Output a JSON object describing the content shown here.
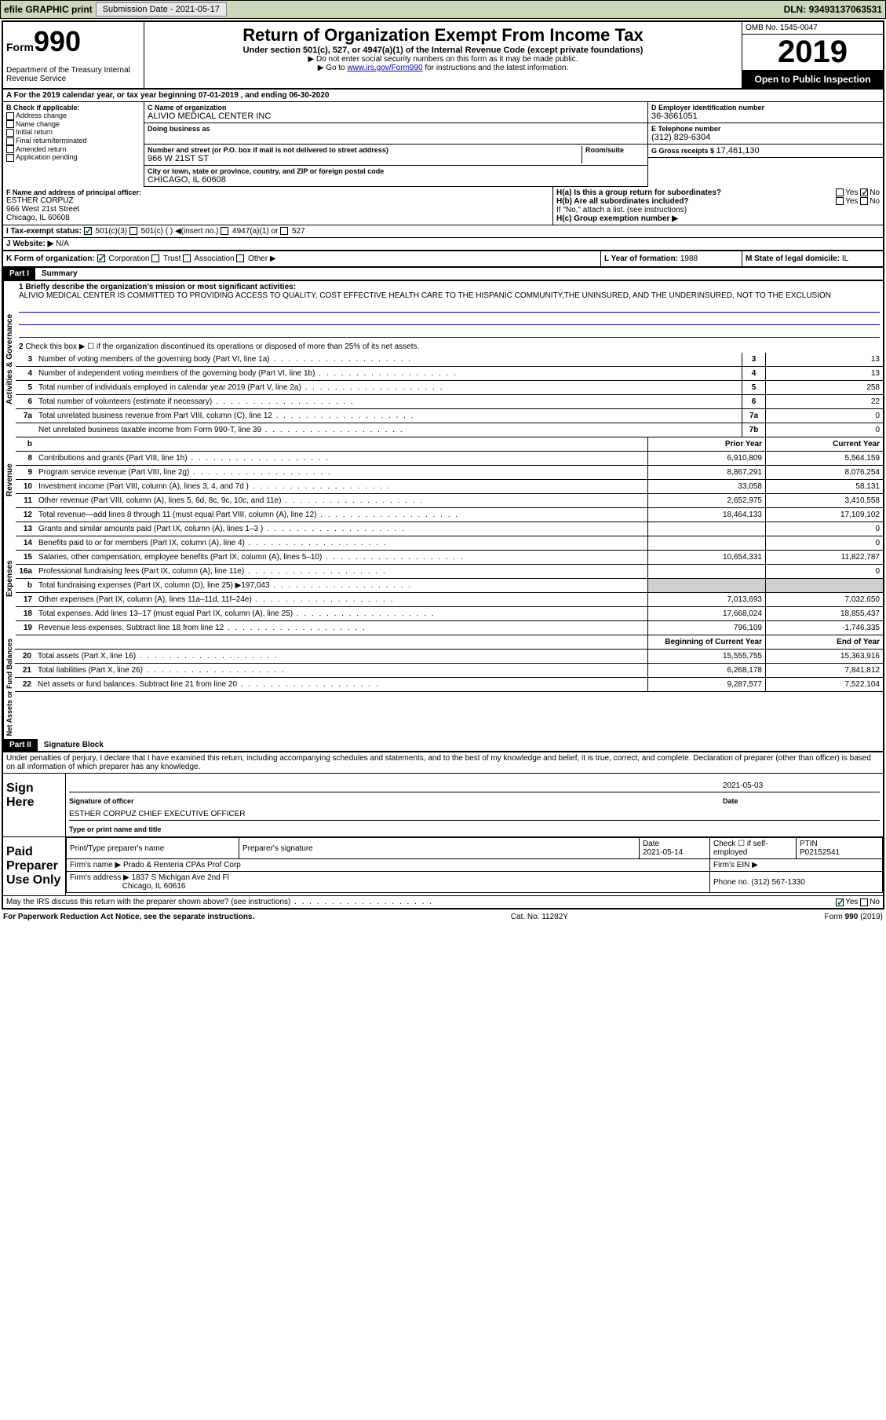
{
  "topbar": {
    "efile": "efile GRAPHIC print",
    "subdate_label": "Submission Date - ",
    "subdate": "2021-05-17",
    "dln_label": "DLN: ",
    "dln": "93493137063531"
  },
  "header": {
    "form_label": "Form",
    "form_num": "990",
    "dept": "Department of the Treasury\nInternal Revenue Service",
    "title": "Return of Organization Exempt From Income Tax",
    "subtitle": "Under section 501(c), 527, or 4947(a)(1) of the Internal Revenue Code (except private foundations)",
    "instruct1": "▶ Do not enter social security numbers on this form as it may be made public.",
    "instruct2_pre": "▶ Go to ",
    "instruct2_link": "www.irs.gov/Form990",
    "instruct2_post": " for instructions and the latest information.",
    "omb": "OMB No. 1545-0047",
    "year": "2019",
    "openpub": "Open to Public Inspection"
  },
  "line_a": "A For the 2019 calendar year, or tax year beginning 07-01-2019   , and ending 06-30-2020",
  "box_b": {
    "label": "B Check if applicable:",
    "opts": [
      "Address change",
      "Name change",
      "Initial return",
      "Final return/terminated",
      "Amended return",
      "Application pending"
    ]
  },
  "box_c": {
    "name_label": "C Name of organization",
    "name": "ALIVIO MEDICAL CENTER INC",
    "dba_label": "Doing business as",
    "addr_label": "Number and street (or P.O. box if mail is not delivered to street address)",
    "room_label": "Room/suite",
    "addr": "966 W 21ST ST",
    "city_label": "City or town, state or province, country, and ZIP or foreign postal code",
    "city": "CHICAGO, IL  60608"
  },
  "box_d": {
    "label": "D Employer identification number",
    "val": "36-3661051"
  },
  "box_e": {
    "label": "E Telephone number",
    "val": "(312) 829-6304"
  },
  "box_g": {
    "label": "G Gross receipts $ ",
    "val": "17,461,130"
  },
  "box_f": {
    "label": "F  Name and address of principal officer:",
    "name": "ESTHER CORPUZ",
    "addr1": "966 West 21st Street",
    "addr2": "Chicago, IL  60608"
  },
  "box_h": {
    "a_label": "H(a)  Is this a group return for subordinates?",
    "a_yes": "Yes",
    "a_no": "No",
    "b_label": "H(b)  Are all subordinates included?",
    "b_yes": "Yes",
    "b_no": "No",
    "b_note": "If \"No,\" attach a list. (see instructions)",
    "c_label": "H(c)  Group exemption number ▶"
  },
  "box_i": {
    "label": "I  Tax-exempt status:",
    "opt1": "501(c)(3)",
    "opt2": "501(c) (   ) ◀(insert no.)",
    "opt3": "4947(a)(1) or",
    "opt4": "527"
  },
  "box_j": {
    "label": "J  Website: ▶",
    "val": "N/A"
  },
  "box_k": {
    "label": "K Form of organization:",
    "opts": [
      "Corporation",
      "Trust",
      "Association",
      "Other ▶"
    ]
  },
  "box_l": {
    "label": "L Year of formation: ",
    "val": "1988"
  },
  "box_m": {
    "label": "M State of legal domicile: ",
    "val": "IL"
  },
  "part1": {
    "num": "Part I",
    "title": "Summary",
    "l1_label": "1  Briefly describe the organization's mission or most significant activities:",
    "l1_text": "ALIVIO MEDICAL CENTER IS COMMITTED TO PROVIDING ACCESS TO QUALITY, COST EFFECTIVE HEALTH CARE TO THE HISPANIC COMMUNITY,THE UNINSURED, AND THE UNDERINSURED, NOT TO THE EXCLUSION",
    "l2": "Check this box ▶ ☐  if the organization discontinued its operations or disposed of more than 25% of its net assets.",
    "governance_label": "Activities & Governance",
    "revenue_label": "Revenue",
    "expenses_label": "Expenses",
    "netassets_label": "Net Assets or Fund Balances",
    "lines_gov": [
      {
        "n": "3",
        "d": "Number of voting members of the governing body (Part VI, line 1a)",
        "b": "3",
        "v": "13"
      },
      {
        "n": "4",
        "d": "Number of independent voting members of the governing body (Part VI, line 1b)",
        "b": "4",
        "v": "13"
      },
      {
        "n": "5",
        "d": "Total number of individuals employed in calendar year 2019 (Part V, line 2a)",
        "b": "5",
        "v": "258"
      },
      {
        "n": "6",
        "d": "Total number of volunteers (estimate if necessary)",
        "b": "6",
        "v": "22"
      },
      {
        "n": "7a",
        "d": "Total unrelated business revenue from Part VIII, column (C), line 12",
        "b": "7a",
        "v": "0"
      },
      {
        "n": "",
        "d": "Net unrelated business taxable income from Form 990-T, line 39",
        "b": "7b",
        "v": "0"
      }
    ],
    "col_prior": "Prior Year",
    "col_current": "Current Year",
    "lines_rev": [
      {
        "n": "8",
        "d": "Contributions and grants (Part VIII, line 1h)",
        "p": "6,910,809",
        "c": "5,564,159"
      },
      {
        "n": "9",
        "d": "Program service revenue (Part VIII, line 2g)",
        "p": "8,867,291",
        "c": "8,076,254"
      },
      {
        "n": "10",
        "d": "Investment income (Part VIII, column (A), lines 3, 4, and 7d )",
        "p": "33,058",
        "c": "58,131"
      },
      {
        "n": "11",
        "d": "Other revenue (Part VIII, column (A), lines 5, 6d, 8c, 9c, 10c, and 11e)",
        "p": "2,652,975",
        "c": "3,410,558"
      },
      {
        "n": "12",
        "d": "Total revenue—add lines 8 through 11 (must equal Part VIII, column (A), line 12)",
        "p": "18,464,133",
        "c": "17,109,102"
      }
    ],
    "lines_exp": [
      {
        "n": "13",
        "d": "Grants and similar amounts paid (Part IX, column (A), lines 1–3 )",
        "p": "",
        "c": "0"
      },
      {
        "n": "14",
        "d": "Benefits paid to or for members (Part IX, column (A), line 4)",
        "p": "",
        "c": "0"
      },
      {
        "n": "15",
        "d": "Salaries, other compensation, employee benefits (Part IX, column (A), lines 5–10)",
        "p": "10,654,331",
        "c": "11,822,787"
      },
      {
        "n": "16a",
        "d": "Professional fundraising fees (Part IX, column (A), line 11e)",
        "p": "",
        "c": "0"
      },
      {
        "n": "b",
        "d": "Total fundraising expenses (Part IX, column (D), line 25) ▶197,043",
        "p": "shaded",
        "c": "shaded"
      },
      {
        "n": "17",
        "d": "Other expenses (Part IX, column (A), lines 11a–11d, 11f–24e)",
        "p": "7,013,693",
        "c": "7,032,650"
      },
      {
        "n": "18",
        "d": "Total expenses. Add lines 13–17 (must equal Part IX, column (A), line 25)",
        "p": "17,668,024",
        "c": "18,855,437"
      },
      {
        "n": "19",
        "d": "Revenue less expenses. Subtract line 18 from line 12",
        "p": "796,109",
        "c": "-1,746,335"
      }
    ],
    "col_begin": "Beginning of Current Year",
    "col_end": "End of Year",
    "lines_net": [
      {
        "n": "20",
        "d": "Total assets (Part X, line 16)",
        "p": "15,555,755",
        "c": "15,363,916"
      },
      {
        "n": "21",
        "d": "Total liabilities (Part X, line 26)",
        "p": "6,268,178",
        "c": "7,841,812"
      },
      {
        "n": "22",
        "d": "Net assets or fund balances. Subtract line 21 from line 20",
        "p": "9,287,577",
        "c": "7,522,104"
      }
    ]
  },
  "part2": {
    "num": "Part II",
    "title": "Signature Block",
    "penalty": "Under penalties of perjury, I declare that I have examined this return, including accompanying schedules and statements, and to the best of my knowledge and belief, it is true, correct, and complete. Declaration of preparer (other than officer) is based on all information of which preparer has any knowledge.",
    "sign_here": "Sign Here",
    "sig_officer_label": "Signature of officer",
    "sig_date_label": "Date",
    "sig_date": "2021-05-03",
    "sig_name": "ESTHER CORPUZ  CHIEF EXECUTIVE OFFICER",
    "sig_name_label": "Type or print name and title",
    "paid_label": "Paid Preparer Use Only",
    "prep_name_label": "Print/Type preparer's name",
    "prep_sig_label": "Preparer's signature",
    "prep_date_label": "Date",
    "prep_date": "2021-05-14",
    "prep_check_label": "Check ☐ if self-employed",
    "ptin_label": "PTIN",
    "ptin": "P02152541",
    "firm_name_label": "Firm's name     ▶",
    "firm_name": "Prado & Renteria CPAs Prof Corp",
    "firm_ein_label": "Firm's EIN ▶",
    "firm_addr_label": "Firm's address ▶",
    "firm_addr1": "1837 S Michigan Ave 2nd Fl",
    "firm_addr2": "Chicago, IL  60616",
    "phone_label": "Phone no. ",
    "phone": "(312) 567-1330",
    "discuss": "May the IRS discuss this return with the preparer shown above? (see instructions)",
    "d_yes": "Yes",
    "d_no": "No"
  },
  "footer": {
    "left": "For Paperwork Reduction Act Notice, see the separate instructions.",
    "mid": "Cat. No. 11282Y",
    "right": "Form 990 (2019)"
  }
}
